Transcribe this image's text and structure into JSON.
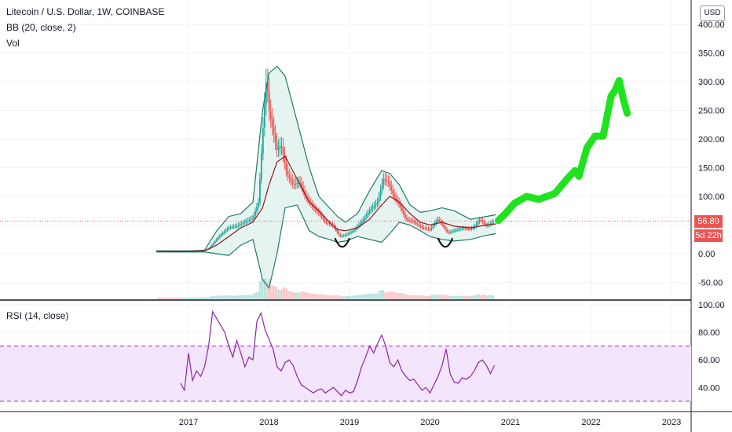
{
  "header": {
    "symbol_title": "Litecoin / U.S. Dollar, 1W, COINBASE",
    "bb_legend": "BB (20, close, 2)",
    "vol_legend": "Vol",
    "rsi_legend": "RSI (14, close)",
    "currency_button": "USD"
  },
  "badges": {
    "last_price": "56.80",
    "countdown": "5d 22h"
  },
  "colors": {
    "bb_band": "#1f7a68",
    "bb_fill": "#e6f4f1",
    "bb_basis": "#8b1a1a",
    "candle_up": "#26a69a",
    "candle_down": "#ef5350",
    "rsi_line": "#8e24aa",
    "rsi_zone": "#f3e5fb",
    "projection": "#1fe31f",
    "price_marker": "#ef5350"
  },
  "chart_data": [
    {
      "type": "candlestick",
      "title": "Litecoin / U.S. Dollar, 1W, COINBASE",
      "ylabel": "USD",
      "ylim": [
        -65,
        420
      ],
      "y_ticks": [
        "400.00",
        "350.00",
        "300.00",
        "250.00",
        "200.00",
        "150.00",
        "100.00",
        "50.00",
        "0.00",
        "-50.00"
      ],
      "x_ticks": [
        "2017",
        "2018",
        "2019",
        "2020",
        "2021",
        "2022",
        "2023"
      ],
      "last_price": 56.8,
      "price_path": [
        [
          2016.6,
          4
        ],
        [
          2016.9,
          3.5
        ],
        [
          2017.15,
          4
        ],
        [
          2017.25,
          8
        ],
        [
          2017.38,
          30
        ],
        [
          2017.5,
          45
        ],
        [
          2017.6,
          48
        ],
        [
          2017.7,
          55
        ],
        [
          2017.8,
          62
        ],
        [
          2017.87,
          90
        ],
        [
          2017.93,
          230
        ],
        [
          2017.97,
          310
        ],
        [
          2018.0,
          250
        ],
        [
          2018.05,
          215
        ],
        [
          2018.1,
          180
        ],
        [
          2018.15,
          190
        ],
        [
          2018.22,
          140
        ],
        [
          2018.3,
          120
        ],
        [
          2018.38,
          125
        ],
        [
          2018.45,
          100
        ],
        [
          2018.55,
          80
        ],
        [
          2018.62,
          70
        ],
        [
          2018.7,
          55
        ],
        [
          2018.8,
          48
        ],
        [
          2018.88,
          30
        ],
        [
          2018.95,
          32
        ],
        [
          2019.05,
          40
        ],
        [
          2019.15,
          55
        ],
        [
          2019.25,
          75
        ],
        [
          2019.35,
          90
        ],
        [
          2019.42,
          130
        ],
        [
          2019.48,
          125
        ],
        [
          2019.55,
          100
        ],
        [
          2019.62,
          85
        ],
        [
          2019.7,
          60
        ],
        [
          2019.8,
          55
        ],
        [
          2019.9,
          45
        ],
        [
          2020.0,
          42
        ],
        [
          2020.1,
          60
        ],
        [
          2020.18,
          45
        ],
        [
          2020.22,
          36
        ],
        [
          2020.3,
          40
        ],
        [
          2020.4,
          44
        ],
        [
          2020.5,
          43
        ],
        [
          2020.55,
          46
        ],
        [
          2020.62,
          60
        ],
        [
          2020.7,
          48
        ],
        [
          2020.78,
          55
        ]
      ],
      "bollinger": {
        "upper": [
          [
            2016.6,
            5
          ],
          [
            2017.0,
            5
          ],
          [
            2017.2,
            6
          ],
          [
            2017.35,
            40
          ],
          [
            2017.5,
            65
          ],
          [
            2017.65,
            70
          ],
          [
            2017.8,
            90
          ],
          [
            2017.92,
            250
          ],
          [
            2018.0,
            315
          ],
          [
            2018.1,
            327
          ],
          [
            2018.2,
            310
          ],
          [
            2018.35,
            230
          ],
          [
            2018.5,
            150
          ],
          [
            2018.62,
            100
          ],
          [
            2018.75,
            80
          ],
          [
            2018.85,
            65
          ],
          [
            2018.95,
            55
          ],
          [
            2019.1,
            70
          ],
          [
            2019.25,
            110
          ],
          [
            2019.4,
            145
          ],
          [
            2019.5,
            140
          ],
          [
            2019.62,
            120
          ],
          [
            2019.75,
            85
          ],
          [
            2019.88,
            72
          ],
          [
            2020.0,
            75
          ],
          [
            2020.15,
            80
          ],
          [
            2020.3,
            75
          ],
          [
            2020.5,
            60
          ],
          [
            2020.7,
            65
          ],
          [
            2020.82,
            68
          ]
        ],
        "basis": [
          [
            2016.6,
            4
          ],
          [
            2017.0,
            4
          ],
          [
            2017.2,
            5
          ],
          [
            2017.35,
            15
          ],
          [
            2017.5,
            30
          ],
          [
            2017.65,
            45
          ],
          [
            2017.8,
            55
          ],
          [
            2017.92,
            80
          ],
          [
            2018.0,
            120
          ],
          [
            2018.1,
            160
          ],
          [
            2018.2,
            170
          ],
          [
            2018.35,
            130
          ],
          [
            2018.5,
            90
          ],
          [
            2018.62,
            75
          ],
          [
            2018.75,
            55
          ],
          [
            2018.85,
            42
          ],
          [
            2018.95,
            40
          ],
          [
            2019.1,
            45
          ],
          [
            2019.25,
            60
          ],
          [
            2019.4,
            85
          ],
          [
            2019.5,
            100
          ],
          [
            2019.62,
            90
          ],
          [
            2019.75,
            70
          ],
          [
            2019.88,
            55
          ],
          [
            2020.0,
            50
          ],
          [
            2020.15,
            55
          ],
          [
            2020.3,
            48
          ],
          [
            2020.5,
            45
          ],
          [
            2020.7,
            50
          ],
          [
            2020.82,
            52
          ]
        ],
        "lower": [
          [
            2016.6,
            3
          ],
          [
            2017.0,
            3
          ],
          [
            2017.2,
            3
          ],
          [
            2017.35,
            0
          ],
          [
            2017.5,
            -3
          ],
          [
            2017.65,
            15
          ],
          [
            2017.8,
            25
          ],
          [
            2017.92,
            -45
          ],
          [
            2018.0,
            -60
          ],
          [
            2018.1,
            0
          ],
          [
            2018.2,
            80
          ],
          [
            2018.35,
            85
          ],
          [
            2018.5,
            40
          ],
          [
            2018.62,
            30
          ],
          [
            2018.75,
            25
          ],
          [
            2018.85,
            20
          ],
          [
            2018.95,
            22
          ],
          [
            2019.1,
            30
          ],
          [
            2019.25,
            25
          ],
          [
            2019.4,
            20
          ],
          [
            2019.5,
            35
          ],
          [
            2019.62,
            55
          ],
          [
            2019.75,
            50
          ],
          [
            2019.88,
            40
          ],
          [
            2020.0,
            30
          ],
          [
            2020.15,
            25
          ],
          [
            2020.3,
            22
          ],
          [
            2020.5,
            25
          ],
          [
            2020.7,
            32
          ],
          [
            2020.82,
            35
          ]
        ]
      },
      "projection": [
        [
          2020.85,
          58
        ],
        [
          2020.95,
          72
        ],
        [
          2021.05,
          88
        ],
        [
          2021.2,
          100
        ],
        [
          2021.35,
          95
        ],
        [
          2021.55,
          105
        ],
        [
          2021.7,
          130
        ],
        [
          2021.8,
          145
        ],
        [
          2021.85,
          135
        ],
        [
          2021.95,
          185
        ],
        [
          2022.05,
          205
        ],
        [
          2022.15,
          205
        ],
        [
          2022.25,
          275
        ],
        [
          2022.3,
          285
        ],
        [
          2022.35,
          302
        ],
        [
          2022.4,
          270
        ],
        [
          2022.45,
          245
        ]
      ]
    },
    {
      "type": "line",
      "title": "RSI (14, close)",
      "ylim": [
        28,
        102
      ],
      "y_ticks": [
        "100.00",
        "80.00",
        "60.00",
        "40.00"
      ],
      "band": [
        30,
        70
      ],
      "series": [
        {
          "x": [
            2016.9,
            2016.95,
            2017.0,
            2017.05,
            2017.1,
            2017.15,
            2017.2,
            2017.25,
            2017.3,
            2017.35,
            2017.4,
            2017.45,
            2017.5,
            2017.55,
            2017.6,
            2017.65,
            2017.7,
            2017.75,
            2017.8,
            2017.85,
            2017.9,
            2017.95,
            2018.0,
            2018.05,
            2018.1,
            2018.15,
            2018.2,
            2018.25,
            2018.3,
            2018.35,
            2018.4,
            2018.45,
            2018.5,
            2018.55,
            2018.6,
            2018.65,
            2018.7,
            2018.75,
            2018.8,
            2018.85,
            2018.9,
            2018.95,
            2019.0,
            2019.05,
            2019.1,
            2019.15,
            2019.2,
            2019.25,
            2019.3,
            2019.35,
            2019.4,
            2019.45,
            2019.5,
            2019.55,
            2019.6,
            2019.65,
            2019.7,
            2019.75,
            2019.8,
            2019.85,
            2019.9,
            2019.95,
            2020.0,
            2020.05,
            2020.1,
            2020.15,
            2020.2,
            2020.25,
            2020.3,
            2020.35,
            2020.4,
            2020.45,
            2020.5,
            2020.55,
            2020.6,
            2020.65,
            2020.7,
            2020.75,
            2020.8
          ],
          "values": [
            43,
            38,
            65,
            45,
            52,
            48,
            55,
            70,
            95,
            90,
            85,
            80,
            70,
            62,
            74,
            65,
            55,
            62,
            60,
            88,
            94,
            82,
            75,
            68,
            55,
            52,
            58,
            60,
            56,
            48,
            42,
            40,
            38,
            36,
            38,
            39,
            36,
            38,
            40,
            37,
            34,
            38,
            36,
            37,
            45,
            55,
            62,
            70,
            65,
            72,
            78,
            70,
            58,
            55,
            60,
            52,
            48,
            45,
            46,
            42,
            38,
            40,
            36,
            42,
            48,
            56,
            68,
            50,
            44,
            43,
            47,
            46,
            48,
            52,
            58,
            60,
            56,
            50,
            56
          ]
        }
      ]
    }
  ]
}
